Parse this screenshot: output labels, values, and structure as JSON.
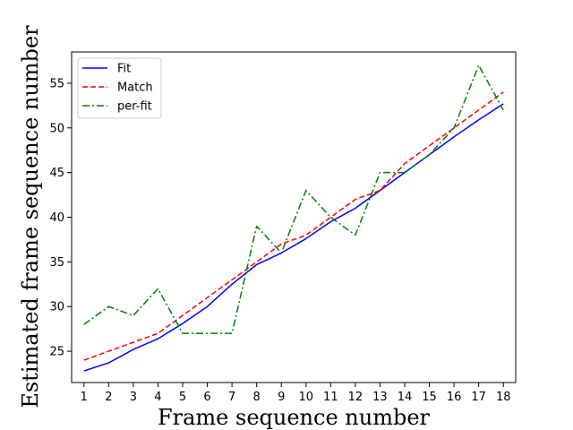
{
  "chart_data": {
    "type": "line",
    "xlabel": "Frame sequence number",
    "ylabel": "Estimated frame sequence number",
    "x": [
      1,
      2,
      3,
      4,
      5,
      6,
      7,
      8,
      9,
      10,
      11,
      12,
      13,
      14,
      15,
      16,
      17,
      18
    ],
    "xlim": [
      0.5,
      18.5
    ],
    "ylim": [
      21.5,
      58.5
    ],
    "yticks": [
      25,
      30,
      35,
      40,
      45,
      50,
      55
    ],
    "legend_position": "upper-left",
    "grid": false,
    "series": [
      {
        "name": "Fit",
        "color": "#0000ff",
        "style": "solid",
        "values": [
          22.8,
          23.7,
          25.2,
          26.4,
          28.1,
          30.0,
          32.5,
          34.7,
          36.0,
          37.6,
          39.5,
          41.0,
          43.0,
          45.0,
          47.0,
          49.0,
          50.9,
          52.7
        ]
      },
      {
        "name": "Match",
        "color": "#ff0000",
        "style": "dashed",
        "values": [
          24,
          25,
          26,
          27,
          29,
          31,
          33,
          35,
          37,
          38,
          40,
          42,
          43,
          46,
          48,
          50,
          52,
          54
        ]
      },
      {
        "name": "per-fit",
        "color": "#008000",
        "style": "dashdot",
        "values": [
          28,
          30,
          29,
          32,
          27,
          27,
          27,
          39,
          36,
          43,
          40,
          38,
          45,
          45,
          47,
          50,
          57,
          52
        ]
      }
    ]
  }
}
